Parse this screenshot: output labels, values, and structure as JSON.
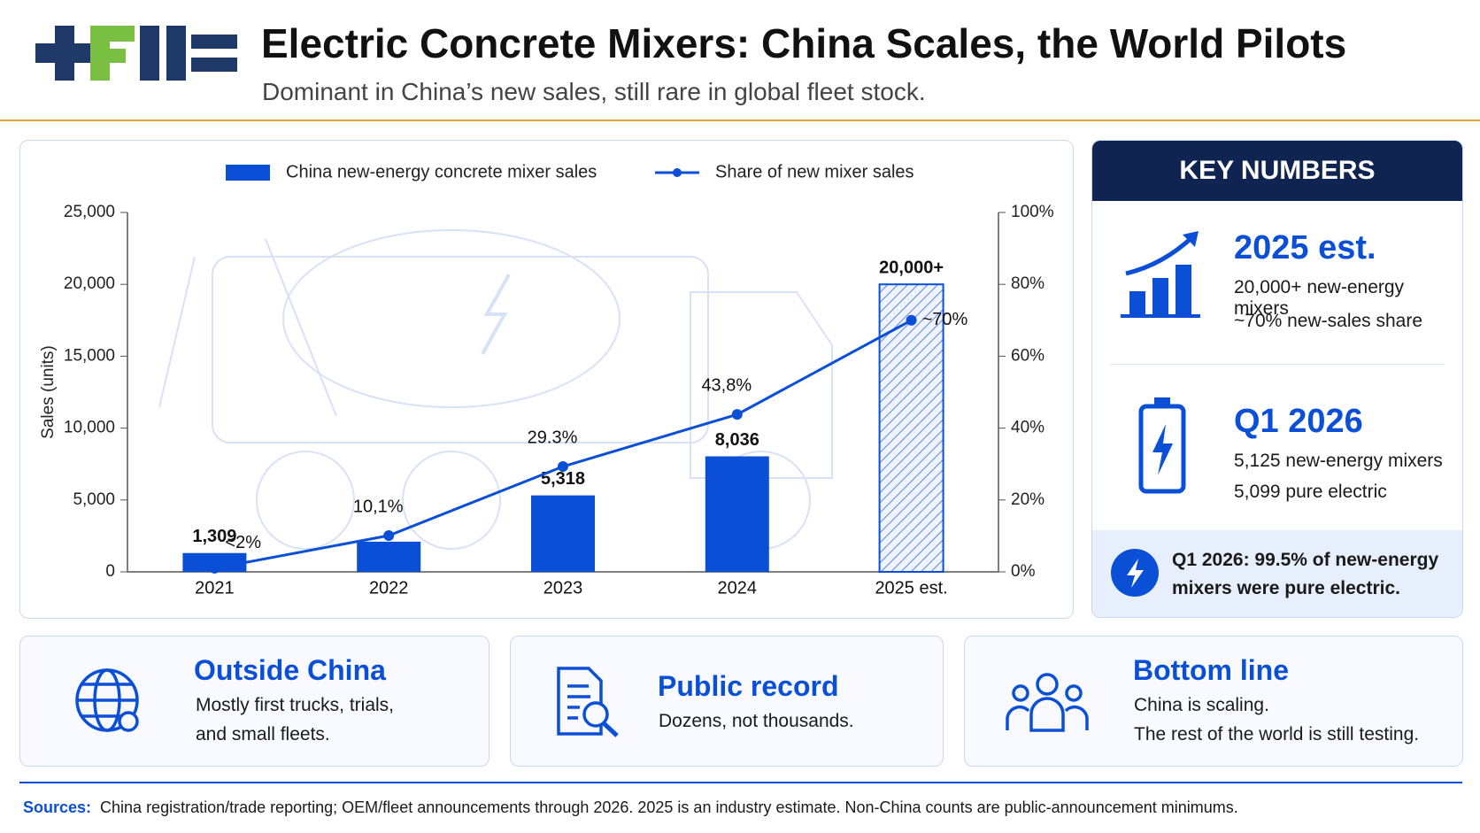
{
  "header": {
    "title": "Electric Concrete Mixers: China Scales, the World Pilots",
    "subtitle": "Dominant in China’s new sales, still rare in global fleet stock."
  },
  "chart_data": {
    "type": "bar",
    "categories": [
      "2021",
      "2022",
      "2023",
      "2024",
      "2025 est."
    ],
    "series": [
      {
        "name": "China new-energy concrete mixer sales",
        "type": "bar",
        "color": "#0a4fd6",
        "values": [
          1309,
          2100,
          5318,
          8036,
          20000
        ],
        "value_labels": [
          "1,309",
          null,
          "5,318",
          "8,036",
          "20,000+"
        ],
        "hatched": [
          false,
          false,
          false,
          false,
          true
        ]
      },
      {
        "name": "Share of new mixer sales",
        "type": "line",
        "axis": "y2",
        "color": "#0a4fd6",
        "values": [
          1,
          10.1,
          29.3,
          43.8,
          70
        ],
        "value_labels": [
          "<2%",
          "10,1%",
          "29.3%",
          "43,8%",
          "~70%"
        ]
      }
    ],
    "ylabel": "Sales (units)",
    "ylim": [
      0,
      25000
    ],
    "yticks": [
      0,
      {
        "value": 5000,
        "label": "5,000"
      },
      {
        "value": 10000,
        "label": "10,000"
      },
      {
        "value": 15000,
        "label": "15,000"
      },
      {
        "value": 20000,
        "label": "20,000"
      },
      {
        "value": 25000,
        "label": "25,000"
      }
    ],
    "y2lim": [
      0,
      100
    ],
    "y2ticks": [
      {
        "value": 0,
        "label": "0%"
      },
      {
        "value": 20,
        "label": "20%"
      },
      {
        "value": 40,
        "label": "40%"
      },
      {
        "value": 60,
        "label": "60%"
      },
      {
        "value": 80,
        "label": "80%"
      },
      {
        "value": 100,
        "label": "100%"
      }
    ],
    "legend": "top"
  },
  "key_numbers": {
    "title": "KEY NUMBERS",
    "items": [
      {
        "heading": "2025 est.",
        "lines": [
          "20,000+ new-energy mixers",
          "~70% new-sales share"
        ]
      },
      {
        "heading": "Q1 2026",
        "lines": [
          "5,125 new-energy mixers",
          "5,099 pure electric"
        ]
      }
    ],
    "callout": [
      "Q1 2026: 99.5% of new-energy",
      "mixers were pure electric."
    ]
  },
  "cards": [
    {
      "title": "Outside China",
      "lines": [
        "Mostly first trucks, trials,",
        "and small fleets."
      ]
    },
    {
      "title": "Public record",
      "lines": [
        "Dozens, not thousands."
      ]
    },
    {
      "title": "Bottom line",
      "lines": [
        "China is scaling.",
        "The rest of the world is still testing."
      ]
    }
  ],
  "sources": {
    "label": "Sources:",
    "text": "China registration/trade reporting; OEM/fleet announcements through 2026. 2025 is an industry estimate.  Non-China counts are public-announcement minimums."
  }
}
